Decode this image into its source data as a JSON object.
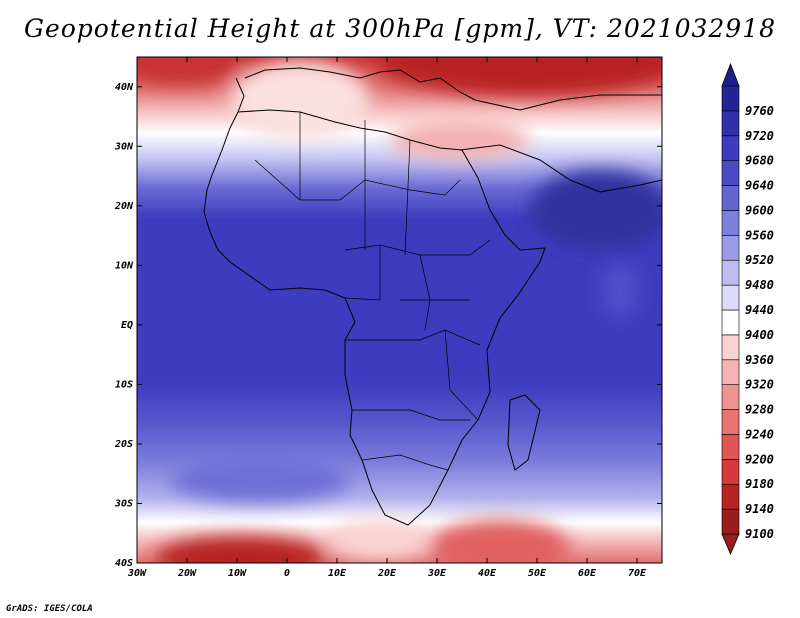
{
  "title": "Geopotential Height at 300hPa [gpm], VT: 2021032918",
  "credit": "GrADS: IGES/COLA",
  "map": {
    "lon_range": [
      -30,
      75
    ],
    "lat_range": [
      -40,
      45
    ],
    "lon_ticks": [
      {
        "value": -30,
        "label": "30W"
      },
      {
        "value": -20,
        "label": "20W"
      },
      {
        "value": -10,
        "label": "10W"
      },
      {
        "value": 0,
        "label": "0"
      },
      {
        "value": 10,
        "label": "10E"
      },
      {
        "value": 20,
        "label": "20E"
      },
      {
        "value": 30,
        "label": "30E"
      },
      {
        "value": 40,
        "label": "40E"
      },
      {
        "value": 50,
        "label": "50E"
      },
      {
        "value": 60,
        "label": "60E"
      },
      {
        "value": 70,
        "label": "70E"
      }
    ],
    "lat_ticks": [
      {
        "value": 40,
        "label": "40N"
      },
      {
        "value": 30,
        "label": "30N"
      },
      {
        "value": 20,
        "label": "20N"
      },
      {
        "value": 10,
        "label": "10N"
      },
      {
        "value": 0,
        "label": "EQ"
      },
      {
        "value": -10,
        "label": "10S"
      },
      {
        "value": -20,
        "label": "20S"
      },
      {
        "value": -30,
        "label": "30S"
      },
      {
        "value": -40,
        "label": "40S"
      }
    ]
  },
  "colorbar": {
    "levels": [
      {
        "value": 9100,
        "label": "9100",
        "color": "#9b1c1c"
      },
      {
        "value": 9140,
        "label": "9140",
        "color": "#b82424"
      },
      {
        "value": 9180,
        "label": "9180",
        "color": "#d43a3a"
      },
      {
        "value": 9200,
        "label": "9200",
        "color": "#e05656"
      },
      {
        "value": 9240,
        "label": "9240",
        "color": "#e87474"
      },
      {
        "value": 9280,
        "label": "9280",
        "color": "#ef9494"
      },
      {
        "value": 9320,
        "label": "9320",
        "color": "#f5b3b3"
      },
      {
        "value": 9360,
        "label": "9360",
        "color": "#fbd3d3"
      },
      {
        "value": 9400,
        "label": "9400",
        "color": "#ffffff"
      },
      {
        "value": 9440,
        "label": "9440",
        "color": "#dcdcf8"
      },
      {
        "value": 9480,
        "label": "9480",
        "color": "#bcbcf0"
      },
      {
        "value": 9520,
        "label": "9520",
        "color": "#9c9ce6"
      },
      {
        "value": 9560,
        "label": "9560",
        "color": "#7e7edc"
      },
      {
        "value": 9600,
        "label": "9600",
        "color": "#6363d2"
      },
      {
        "value": 9640,
        "label": "9640",
        "color": "#4a4ac6"
      },
      {
        "value": 9680,
        "label": "9680",
        "color": "#3c3cbe"
      },
      {
        "value": 9720,
        "label": "9720",
        "color": "#3030a8"
      },
      {
        "value": 9760,
        "label": "9760",
        "color": "#24249a"
      }
    ],
    "below_color": "#9b1c1c",
    "above_color": "#1e1e8c"
  }
}
